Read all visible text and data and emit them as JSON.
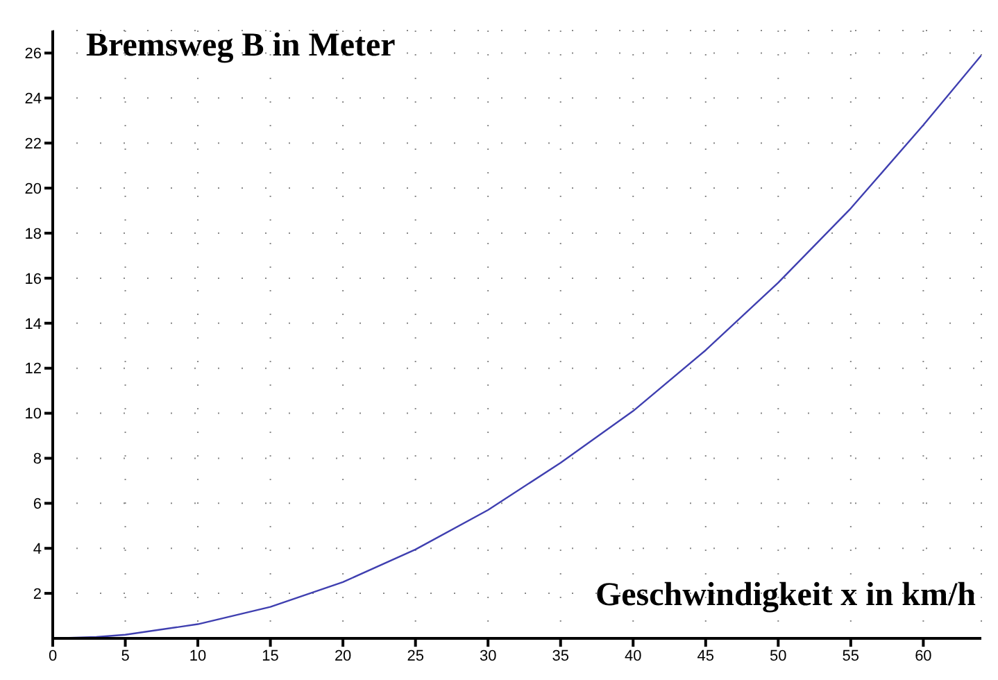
{
  "chart_data": {
    "type": "line",
    "xlabel": "Geschwindigkeit x in km/h",
    "ylabel": "Bremsweg B in Meter",
    "x": [
      0,
      3,
      5,
      10,
      15,
      20,
      25,
      30,
      35,
      40,
      45,
      50,
      55,
      60,
      64
    ],
    "series": [
      {
        "color": "#3f3fb0",
        "values": [
          0,
          0.06,
          0.16,
          0.63,
          1.4,
          2.5,
          3.95,
          5.7,
          7.8,
          10.1,
          12.8,
          15.8,
          19.1,
          22.8,
          25.9
        ]
      }
    ],
    "xlim": [
      0,
      64
    ],
    "ylim": [
      0,
      27
    ],
    "xticks": [
      0,
      5,
      10,
      15,
      20,
      25,
      30,
      35,
      40,
      45,
      50,
      55,
      60
    ],
    "yticks": [
      2,
      4,
      6,
      8,
      10,
      12,
      14,
      16,
      18,
      20,
      22,
      24,
      26
    ],
    "grid": true,
    "marker": "none",
    "line_style": "solid"
  }
}
